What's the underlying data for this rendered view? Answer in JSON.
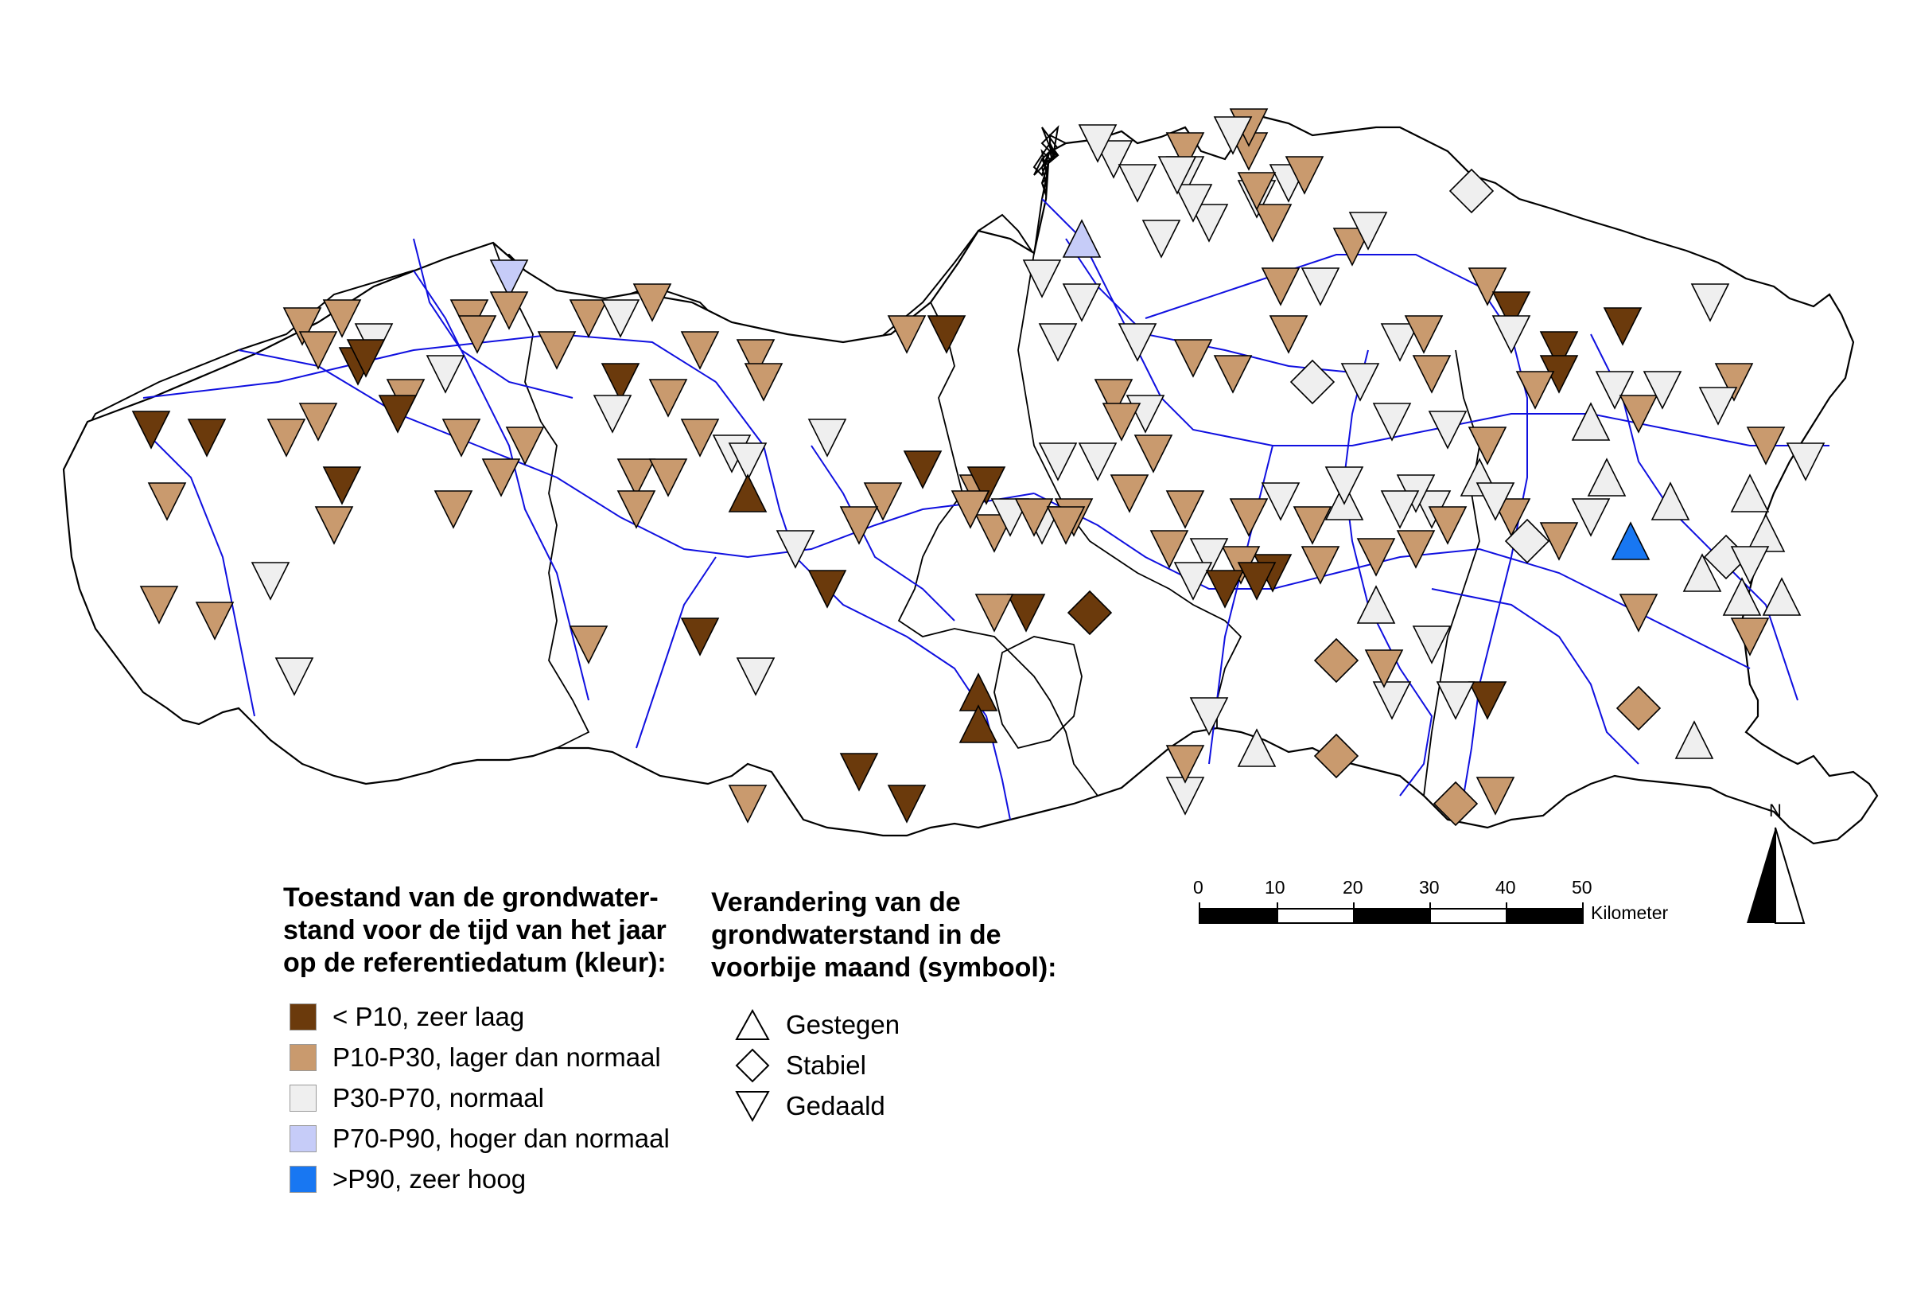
{
  "legend_state": {
    "title": [
      "Toestand van de grondwater-",
      "stand voor de tijd van het jaar",
      "op de referentiedatum (kleur):"
    ],
    "items": [
      {
        "key": "zl",
        "label": "< P10, zeer laag",
        "color": "#6b3a0c"
      },
      {
        "key": "ln",
        "label": "P10-P30, lager dan normaal",
        "color": "#c99a6e"
      },
      {
        "key": "n",
        "label": "P30-P70, normaal",
        "color": "#efefef"
      },
      {
        "key": "hn",
        "label": "P70-P90, hoger dan normaal",
        "color": "#c6ccf8"
      },
      {
        "key": "zh",
        "label": ">P90, zeer hoog",
        "color": "#1877f2"
      }
    ]
  },
  "legend_change": {
    "title": [
      "Verandering van de",
      "grondwaterstand in de",
      "voorbije maand (symbool):"
    ],
    "items": [
      {
        "key": "up",
        "label": "Gestegen",
        "icon": "triangle-up-icon"
      },
      {
        "key": "st",
        "label": "Stabiel",
        "icon": "diamond-icon"
      },
      {
        "key": "dn",
        "label": "Gedaald",
        "icon": "triangle-down-icon"
      }
    ]
  },
  "scale_bar": {
    "ticks": [
      "0",
      "10",
      "20",
      "30",
      "40",
      "50"
    ],
    "unit": "Kilometer"
  },
  "north_arrow": {
    "label": "N"
  },
  "colors": {
    "border": "#000000",
    "river": "#1010e0"
  },
  "stations": [
    [
      1400,
      200,
      "n",
      "dn"
    ],
    [
      1430,
      230,
      "n",
      "dn"
    ],
    [
      1360,
      300,
      "hn",
      "up"
    ],
    [
      1490,
      220,
      "n",
      "dn"
    ],
    [
      1520,
      280,
      "n",
      "dn"
    ],
    [
      1580,
      250,
      "n",
      "dn"
    ],
    [
      1500,
      255,
      "n",
      "dn"
    ],
    [
      1460,
      300,
      "n",
      "dn"
    ],
    [
      1660,
      360,
      "n",
      "dn"
    ],
    [
      1700,
      310,
      "ln",
      "dn"
    ],
    [
      1720,
      290,
      "n",
      "dn"
    ],
    [
      1850,
      240,
      "n",
      "st"
    ],
    [
      1870,
      360,
      "ln",
      "dn"
    ],
    [
      1900,
      390,
      "dn",
      "dn"
    ],
    [
      1960,
      440,
      "dn",
      "dn"
    ],
    [
      1900,
      420,
      "n",
      "dn"
    ],
    [
      1960,
      470,
      "dn",
      "dn"
    ],
    [
      2040,
      410,
      "dn",
      "dn"
    ],
    [
      2150,
      380,
      "n",
      "dn"
    ],
    [
      2180,
      480,
      "ln",
      "dn"
    ],
    [
      2030,
      490,
      "n",
      "dn"
    ],
    [
      2060,
      520,
      "ln",
      "dn"
    ],
    [
      2090,
      490,
      "n",
      "dn"
    ],
    [
      1930,
      490,
      "ln",
      "dn"
    ],
    [
      2000,
      530,
      "n",
      "up"
    ],
    [
      2160,
      510,
      "n",
      "dn"
    ],
    [
      2270,
      580,
      "n",
      "dn"
    ],
    [
      2220,
      560,
      "ln",
      "dn"
    ],
    [
      2020,
      600,
      "n",
      "up"
    ],
    [
      2000,
      650,
      "n",
      "dn"
    ],
    [
      1920,
      680,
      "n",
      "st"
    ],
    [
      1960,
      680,
      "ln",
      "dn"
    ],
    [
      2050,
      680,
      "blue",
      "up"
    ],
    [
      2100,
      630,
      "n",
      "up"
    ],
    [
      2170,
      700,
      "n",
      "st"
    ],
    [
      2200,
      620,
      "n",
      "up"
    ],
    [
      2220,
      670,
      "n",
      "up"
    ],
    [
      2200,
      710,
      "n",
      "dn"
    ],
    [
      2140,
      720,
      "n",
      "up"
    ],
    [
      2190,
      750,
      "n",
      "up"
    ],
    [
      2240,
      750,
      "n",
      "up"
    ],
    [
      2200,
      800,
      "ln",
      "dn"
    ],
    [
      2060,
      770,
      "ln",
      "dn"
    ],
    [
      2060,
      890,
      "ln",
      "st"
    ],
    [
      2130,
      930,
      "n",
      "up"
    ],
    [
      1880,
      1000,
      "ln",
      "dn"
    ],
    [
      1830,
      1010,
      "ln",
      "st"
    ],
    [
      1870,
      880,
      "dn",
      "dn"
    ],
    [
      1800,
      810,
      "n",
      "dn"
    ],
    [
      1830,
      880,
      "n",
      "dn"
    ],
    [
      1750,
      880,
      "n",
      "dn"
    ],
    [
      1740,
      840,
      "ln",
      "dn"
    ],
    [
      1730,
      760,
      "n",
      "up"
    ],
    [
      1680,
      830,
      "ln",
      "st"
    ],
    [
      1580,
      940,
      "n",
      "up"
    ],
    [
      1490,
      1000,
      "n",
      "dn"
    ],
    [
      1490,
      960,
      "ln",
      "dn"
    ],
    [
      1680,
      950,
      "ln",
      "st"
    ],
    [
      1600,
      720,
      "dn",
      "dn"
    ],
    [
      1560,
      710,
      "ln",
      "dn"
    ],
    [
      1520,
      700,
      "n",
      "dn"
    ],
    [
      1470,
      690,
      "ln",
      "dn"
    ],
    [
      1500,
      730,
      "n",
      "dn"
    ],
    [
      1540,
      740,
      "dn",
      "dn"
    ],
    [
      1580,
      730,
      "dn",
      "dn"
    ],
    [
      1660,
      710,
      "ln",
      "dn"
    ],
    [
      1690,
      630,
      "n",
      "up"
    ],
    [
      1730,
      700,
      "ln",
      "dn"
    ],
    [
      1780,
      690,
      "ln",
      "dn"
    ],
    [
      1800,
      640,
      "n",
      "dn"
    ],
    [
      1820,
      660,
      "ln",
      "dn"
    ],
    [
      1860,
      600,
      "n",
      "up"
    ],
    [
      1900,
      650,
      "ln",
      "dn"
    ],
    [
      1880,
      630,
      "n",
      "dn"
    ],
    [
      1870,
      560,
      "ln",
      "dn"
    ],
    [
      1780,
      620,
      "n",
      "dn"
    ],
    [
      1760,
      640,
      "n",
      "dn"
    ],
    [
      1690,
      610,
      "n",
      "dn"
    ],
    [
      1650,
      660,
      "ln",
      "dn"
    ],
    [
      1610,
      630,
      "n",
      "dn"
    ],
    [
      1570,
      650,
      "ln",
      "dn"
    ],
    [
      1490,
      640,
      "ln",
      "dn"
    ],
    [
      1420,
      620,
      "ln",
      "dn"
    ],
    [
      1350,
      650,
      "ln",
      "dn"
    ],
    [
      1310,
      660,
      "n",
      "dn"
    ],
    [
      1250,
      670,
      "ln",
      "dn"
    ],
    [
      1230,
      620,
      "ln",
      "dn"
    ],
    [
      1330,
      580,
      "n",
      "dn"
    ],
    [
      1380,
      580,
      "n",
      "dn"
    ],
    [
      1450,
      570,
      "ln",
      "dn"
    ],
    [
      1440,
      520,
      "n",
      "dn"
    ],
    [
      1400,
      500,
      "ln",
      "dn"
    ],
    [
      1410,
      530,
      "ln",
      "dn"
    ],
    [
      1500,
      450,
      "ln",
      "dn"
    ],
    [
      1550,
      470,
      "ln",
      "dn"
    ],
    [
      1430,
      430,
      "n",
      "dn"
    ],
    [
      1360,
      380,
      "n",
      "dn"
    ],
    [
      1310,
      350,
      "n",
      "dn"
    ],
    [
      1330,
      430,
      "n",
      "dn"
    ],
    [
      1600,
      280,
      "ln",
      "dn"
    ],
    [
      1610,
      360,
      "ln",
      "dn"
    ],
    [
      1620,
      420,
      "ln",
      "dn"
    ],
    [
      1650,
      480,
      "n",
      "st"
    ],
    [
      1710,
      480,
      "n",
      "dn"
    ],
    [
      1750,
      530,
      "n",
      "dn"
    ],
    [
      1820,
      540,
      "n",
      "dn"
    ],
    [
      1760,
      430,
      "n",
      "dn"
    ],
    [
      1800,
      470,
      "ln",
      "dn"
    ],
    [
      1790,
      420,
      "ln",
      "dn"
    ],
    [
      1570,
      190,
      "ln",
      "dn"
    ],
    [
      1570,
      160,
      "ln",
      "dn"
    ],
    [
      1380,
      180,
      "n",
      "dn"
    ],
    [
      1620,
      230,
      "n",
      "dn"
    ],
    [
      1640,
      220,
      "ln",
      "dn"
    ],
    [
      1490,
      190,
      "ln",
      "dn"
    ],
    [
      1550,
      170,
      "n",
      "dn"
    ],
    [
      1580,
      240,
      "ln",
      "dn"
    ],
    [
      1480,
      220,
      "n",
      "dn"
    ],
    [
      430,
      400,
      "ln",
      "dn"
    ],
    [
      380,
      410,
      "ln",
      "dn"
    ],
    [
      400,
      440,
      "ln",
      "dn"
    ],
    [
      450,
      460,
      "dn",
      "dn"
    ],
    [
      470,
      430,
      "n",
      "dn"
    ],
    [
      510,
      500,
      "ln",
      "dn"
    ],
    [
      560,
      470,
      "n",
      "dn"
    ],
    [
      640,
      350,
      "hn",
      "dn"
    ],
    [
      640,
      390,
      "ln",
      "dn"
    ],
    [
      590,
      400,
      "ln",
      "dn"
    ],
    [
      600,
      420,
      "ln",
      "dn"
    ],
    [
      700,
      440,
      "ln",
      "dn"
    ],
    [
      740,
      400,
      "ln",
      "dn"
    ],
    [
      780,
      400,
      "n",
      "dn"
    ],
    [
      820,
      380,
      "ln",
      "dn"
    ],
    [
      880,
      440,
      "ln",
      "dn"
    ],
    [
      950,
      450,
      "ln",
      "dn"
    ],
    [
      960,
      480,
      "ln",
      "dn"
    ],
    [
      840,
      500,
      "ln",
      "dn"
    ],
    [
      780,
      480,
      "dn",
      "dn"
    ],
    [
      770,
      520,
      "n",
      "dn"
    ],
    [
      660,
      560,
      "ln",
      "dn"
    ],
    [
      580,
      550,
      "ln",
      "dn"
    ],
    [
      630,
      600,
      "ln",
      "dn"
    ],
    [
      800,
      600,
      "ln",
      "dn"
    ],
    [
      800,
      640,
      "ln",
      "dn"
    ],
    [
      880,
      550,
      "ln",
      "dn"
    ],
    [
      920,
      570,
      "n",
      "dn"
    ],
    [
      940,
      580,
      "n",
      "dn"
    ],
    [
      840,
      600,
      "ln",
      "dn"
    ],
    [
      1140,
      420,
      "ln",
      "dn"
    ],
    [
      1190,
      420,
      "dn",
      "dn"
    ],
    [
      1040,
      550,
      "n",
      "dn"
    ],
    [
      940,
      620,
      "dn",
      "up"
    ],
    [
      1000,
      690,
      "n",
      "dn"
    ],
    [
      1040,
      740,
      "dn",
      "dn"
    ],
    [
      1110,
      630,
      "ln",
      "dn"
    ],
    [
      1080,
      660,
      "ln",
      "dn"
    ],
    [
      1160,
      590,
      "dn",
      "dn"
    ],
    [
      1240,
      610,
      "dn",
      "dn"
    ],
    [
      1220,
      640,
      "ln",
      "dn"
    ],
    [
      1270,
      650,
      "n",
      "dn"
    ],
    [
      1300,
      650,
      "ln",
      "dn"
    ],
    [
      1340,
      660,
      "ln",
      "dn"
    ],
    [
      1290,
      770,
      "dn",
      "dn"
    ],
    [
      1250,
      770,
      "ln",
      "dn"
    ],
    [
      1370,
      770,
      "dn",
      "st"
    ],
    [
      1230,
      870,
      "dn",
      "up"
    ],
    [
      1230,
      910,
      "dn",
      "up"
    ],
    [
      1080,
      970,
      "dn",
      "dn"
    ],
    [
      1140,
      1010,
      "dn",
      "dn"
    ],
    [
      940,
      1010,
      "ln",
      "dn"
    ],
    [
      740,
      810,
      "ln",
      "dn"
    ],
    [
      880,
      800,
      "dn",
      "dn"
    ],
    [
      950,
      850,
      "n",
      "dn"
    ],
    [
      190,
      540,
      "dn",
      "dn"
    ],
    [
      260,
      550,
      "dn",
      "dn"
    ],
    [
      210,
      630,
      "ln",
      "dn"
    ],
    [
      400,
      530,
      "ln",
      "dn"
    ],
    [
      430,
      610,
      "dn",
      "dn"
    ],
    [
      420,
      660,
      "ln",
      "dn"
    ],
    [
      340,
      730,
      "n",
      "dn"
    ],
    [
      200,
      760,
      "ln",
      "dn"
    ],
    [
      270,
      780,
      "ln",
      "dn"
    ],
    [
      370,
      850,
      "n",
      "dn"
    ],
    [
      570,
      640,
      "ln",
      "dn"
    ],
    [
      460,
      450,
      "dn",
      "dn"
    ],
    [
      500,
      520,
      "dn",
      "dn"
    ],
    [
      360,
      550,
      "ln",
      "dn"
    ],
    [
      1520,
      900,
      "n",
      "dn"
    ]
  ]
}
